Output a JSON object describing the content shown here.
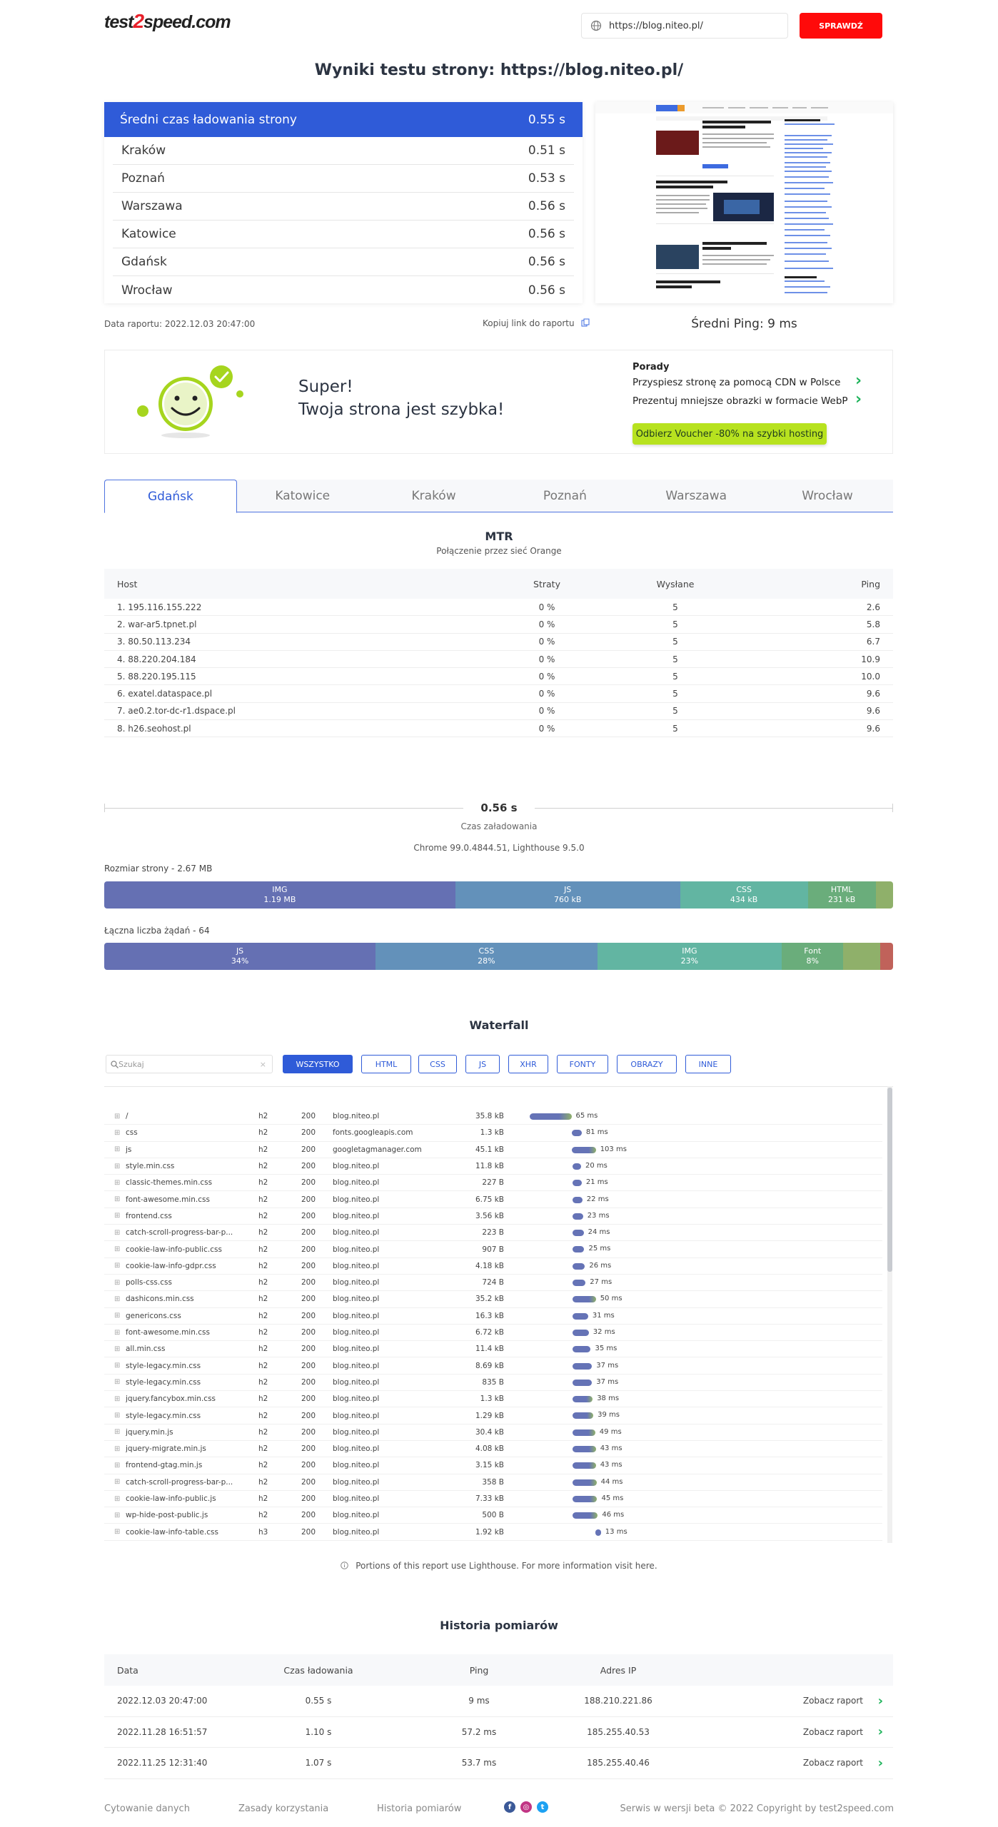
{
  "header": {
    "logo_left": "test",
    "logo_mid": "2",
    "logo_right": "speed.com",
    "url_value": "https://blog.niteo.pl/",
    "check_label": "SPRAWDŹ"
  },
  "page_title": "Wyniki testu strony: https://blog.niteo.pl/",
  "times": {
    "head_label": "Średni czas ładowania strony",
    "head_value": "0.55 s",
    "rows": [
      {
        "city": "Kraków",
        "value": "0.51 s"
      },
      {
        "city": "Poznań",
        "value": "0.53 s"
      },
      {
        "city": "Warszawa",
        "value": "0.56 s"
      },
      {
        "city": "Katowice",
        "value": "0.56 s"
      },
      {
        "city": "Gdańsk",
        "value": "0.56 s"
      },
      {
        "city": "Wrocław",
        "value": "0.56 s"
      }
    ]
  },
  "report_date": "Data raportu: 2022.12.03 20:47:00",
  "copy_link": "Kopiuj link do raportu",
  "ping_avg": "Średni Ping: 9 ms",
  "result": {
    "line1": "Super!",
    "line2": "Twoja strona jest szybka!",
    "tips_title": "Porady",
    "tip1": "Przyspiesz stronę za pomocą CDN w Polsce",
    "tip2": "Prezentuj mniejsze obrazki w formacie WebP",
    "voucher": "Odbierz Voucher -80% na szybki hosting"
  },
  "tabs": [
    "Gdańsk",
    "Katowice",
    "Kraków",
    "Poznań",
    "Warszawa",
    "Wrocław"
  ],
  "mtr": {
    "title": "MTR",
    "subtitle": "Połączenie przez sieć Orange",
    "headers": {
      "host": "Host",
      "loss": "Straty",
      "sent": "Wysłane",
      "ping": "Ping"
    },
    "rows": [
      {
        "host": "1.    195.116.155.222",
        "loss": "0 %",
        "sent": "5",
        "ping": "2.6"
      },
      {
        "host": "2.    war-ar5.tpnet.pl",
        "loss": "0 %",
        "sent": "5",
        "ping": "5.8"
      },
      {
        "host": "3.    80.50.113.234",
        "loss": "0 %",
        "sent": "5",
        "ping": "6.7"
      },
      {
        "host": "4.    88.220.204.184",
        "loss": "0 %",
        "sent": "5",
        "ping": "10.9"
      },
      {
        "host": "5.    88.220.195.115",
        "loss": "0 %",
        "sent": "5",
        "ping": "10.0"
      },
      {
        "host": "6.    exatel.dataspace.pl",
        "loss": "0 %",
        "sent": "5",
        "ping": "9.6"
      },
      {
        "host": "7.    ae0.2.tor-dc-r1.dspace.pl",
        "loss": "0 %",
        "sent": "5",
        "ping": "9.6"
      },
      {
        "host": "8.    h26.seohost.pl",
        "loss": "0 %",
        "sent": "5",
        "ping": "9.6"
      }
    ]
  },
  "load": {
    "value": "0.56 s",
    "label": "Czas załadowania",
    "env": "Chrome 99.0.4844.51, Lighthouse 9.5.0"
  },
  "size_bar": {
    "title": "Rozmiar strony - 2.67 MB",
    "segments": [
      {
        "name": "IMG",
        "value": "1.19 MB",
        "fraction": 0.445,
        "color": "#6570b3"
      },
      {
        "name": "JS",
        "value": "760 kB",
        "fraction": 0.285,
        "color": "#6391ba"
      },
      {
        "name": "CSS",
        "value": "434 kB",
        "fraction": 0.162,
        "color": "#62b5a2"
      },
      {
        "name": "HTML",
        "value": "231 kB",
        "fraction": 0.086,
        "color": "#6aad7b"
      },
      {
        "name": "",
        "value": "",
        "fraction": 0.022,
        "color": "#8fb06a"
      }
    ]
  },
  "req_bar": {
    "title": "Łączna liczba żądań - 64",
    "segments": [
      {
        "name": "JS",
        "value": "34%",
        "fraction": 0.344,
        "color": "#6570b3"
      },
      {
        "name": "CSS",
        "value": "28%",
        "fraction": 0.281,
        "color": "#6391ba"
      },
      {
        "name": "IMG",
        "value": "23%",
        "fraction": 0.234,
        "color": "#62b5a2"
      },
      {
        "name": "Font",
        "value": "8%",
        "fraction": 0.078,
        "color": "#6aad7b"
      },
      {
        "name": "",
        "value": "",
        "fraction": 0.047,
        "color": "#8fb06a"
      },
      {
        "name": "",
        "value": "",
        "fraction": 0.016,
        "color": "#c0625a"
      }
    ]
  },
  "waterfall": {
    "title": "Waterfall",
    "search_placeholder": "Szukaj",
    "filters": [
      "WSZYSTKO",
      "HTML",
      "CSS",
      "JS",
      "XHR",
      "FONTY",
      "OBRAZY",
      "INNE"
    ],
    "rows": [
      {
        "name": "/",
        "proto": "h2",
        "status": "200",
        "domain": "blog.niteo.pl",
        "size": "35.8 kB",
        "start": 0,
        "dur": 65,
        "label": "65 ms"
      },
      {
        "name": "css",
        "proto": "h2",
        "status": "200",
        "domain": "fonts.googleapis.com",
        "size": "1.3 kB",
        "start": 65,
        "dur": 16,
        "label": "81 ms"
      },
      {
        "name": "js",
        "proto": "h2",
        "status": "200",
        "domain": "googletagmanager.com",
        "size": "45.1 kB",
        "start": 65,
        "dur": 38,
        "label": "103 ms"
      },
      {
        "name": "style.min.css",
        "proto": "h2",
        "status": "200",
        "domain": "blog.niteo.pl",
        "size": "11.8 kB",
        "start": 67,
        "dur": 13,
        "label": "20 ms"
      },
      {
        "name": "classic-themes.min.css",
        "proto": "h2",
        "status": "200",
        "domain": "blog.niteo.pl",
        "size": "227 B",
        "start": 67,
        "dur": 14,
        "label": "21 ms"
      },
      {
        "name": "font-awesome.min.css",
        "proto": "h2",
        "status": "200",
        "domain": "blog.niteo.pl",
        "size": "6.75 kB",
        "start": 67,
        "dur": 15,
        "label": "22 ms"
      },
      {
        "name": "frontend.css",
        "proto": "h2",
        "status": "200",
        "domain": "blog.niteo.pl",
        "size": "3.56 kB",
        "start": 67,
        "dur": 16,
        "label": "23 ms"
      },
      {
        "name": "catch-scroll-progress-bar-p...",
        "proto": "h2",
        "status": "200",
        "domain": "blog.niteo.pl",
        "size": "223 B",
        "start": 67,
        "dur": 17,
        "label": "24 ms"
      },
      {
        "name": "cookie-law-info-public.css",
        "proto": "h2",
        "status": "200",
        "domain": "blog.niteo.pl",
        "size": "907 B",
        "start": 67,
        "dur": 18,
        "label": "25 ms"
      },
      {
        "name": "cookie-law-info-gdpr.css",
        "proto": "h2",
        "status": "200",
        "domain": "blog.niteo.pl",
        "size": "4.18 kB",
        "start": 67,
        "dur": 19,
        "label": "26 ms"
      },
      {
        "name": "polls-css.css",
        "proto": "h2",
        "status": "200",
        "domain": "blog.niteo.pl",
        "size": "724 B",
        "start": 67,
        "dur": 20,
        "label": "27 ms"
      },
      {
        "name": "dashicons.min.css",
        "proto": "h2",
        "status": "200",
        "domain": "blog.niteo.pl",
        "size": "35.2 kB",
        "start": 67,
        "dur": 36,
        "label": "50 ms"
      },
      {
        "name": "genericons.css",
        "proto": "h2",
        "status": "200",
        "domain": "blog.niteo.pl",
        "size": "16.3 kB",
        "start": 67,
        "dur": 24,
        "label": "31 ms"
      },
      {
        "name": "font-awesome.min.css",
        "proto": "h2",
        "status": "200",
        "domain": "blog.niteo.pl",
        "size": "6.72 kB",
        "start": 67,
        "dur": 25,
        "label": "32 ms"
      },
      {
        "name": "all.min.css",
        "proto": "h2",
        "status": "200",
        "domain": "blog.niteo.pl",
        "size": "11.4 kB",
        "start": 67,
        "dur": 28,
        "label": "35 ms"
      },
      {
        "name": "style-legacy.min.css",
        "proto": "h2",
        "status": "200",
        "domain": "blog.niteo.pl",
        "size": "8.69 kB",
        "start": 67,
        "dur": 30,
        "label": "37 ms"
      },
      {
        "name": "style-legacy.min.css",
        "proto": "h2",
        "status": "200",
        "domain": "blog.niteo.pl",
        "size": "835 B",
        "start": 67,
        "dur": 30,
        "label": "37 ms"
      },
      {
        "name": "jquery.fancybox.min.css",
        "proto": "h2",
        "status": "200",
        "domain": "blog.niteo.pl",
        "size": "1.3 kB",
        "start": 67,
        "dur": 31,
        "label": "38 ms"
      },
      {
        "name": "style-legacy.min.css",
        "proto": "h2",
        "status": "200",
        "domain": "blog.niteo.pl",
        "size": "1.29 kB",
        "start": 67,
        "dur": 32,
        "label": "39 ms"
      },
      {
        "name": "jquery.min.js",
        "proto": "h2",
        "status": "200",
        "domain": "blog.niteo.pl",
        "size": "30.4 kB",
        "start": 67,
        "dur": 35,
        "label": "49 ms"
      },
      {
        "name": "jquery-migrate.min.js",
        "proto": "h2",
        "status": "200",
        "domain": "blog.niteo.pl",
        "size": "4.08 kB",
        "start": 67,
        "dur": 36,
        "label": "43 ms"
      },
      {
        "name": "frontend-gtag.min.js",
        "proto": "h2",
        "status": "200",
        "domain": "blog.niteo.pl",
        "size": "3.15 kB",
        "start": 67,
        "dur": 36,
        "label": "43 ms"
      },
      {
        "name": "catch-scroll-progress-bar-p...",
        "proto": "h2",
        "status": "200",
        "domain": "blog.niteo.pl",
        "size": "358 B",
        "start": 67,
        "dur": 37,
        "label": "44 ms"
      },
      {
        "name": "cookie-law-info-public.js",
        "proto": "h2",
        "status": "200",
        "domain": "blog.niteo.pl",
        "size": "7.33 kB",
        "start": 67,
        "dur": 38,
        "label": "45 ms"
      },
      {
        "name": "wp-hide-post-public.js",
        "proto": "h2",
        "status": "200",
        "domain": "blog.niteo.pl",
        "size": "500 B",
        "start": 67,
        "dur": 39,
        "label": "46 ms"
      },
      {
        "name": "cookie-law-info-table.css",
        "proto": "h3",
        "status": "200",
        "domain": "blog.niteo.pl",
        "size": "1.92 kB",
        "start": 102,
        "dur": 4,
        "label": "13 ms"
      }
    ]
  },
  "lighthouse_note": "Portions of this report use Lighthouse. For more information visit here.",
  "history": {
    "title": "Historia pomiarów",
    "headers": {
      "date": "Data",
      "time": "Czas ładowania",
      "ping": "Ping",
      "ip": "Adres IP"
    },
    "rows": [
      {
        "date": "2022.12.03 20:47:00",
        "time": "0.55 s",
        "ping": "9 ms",
        "ip": "188.210.221.86",
        "link": "Zobacz raport"
      },
      {
        "date": "2022.11.28 16:51:57",
        "time": "1.10 s",
        "ping": "57.2 ms",
        "ip": "185.255.40.53",
        "link": "Zobacz raport"
      },
      {
        "date": "2022.11.25 12:31:40",
        "time": "1.07 s",
        "ping": "53.7 ms",
        "ip": "185.255.40.46",
        "link": "Zobacz raport"
      }
    ]
  },
  "footer": {
    "links": [
      "Cytowanie danych",
      "Zasady korzystania",
      "Historia pomiarów"
    ],
    "copyright": "Serwis w wersji beta © 2022 Copyright by test2speed.com"
  }
}
